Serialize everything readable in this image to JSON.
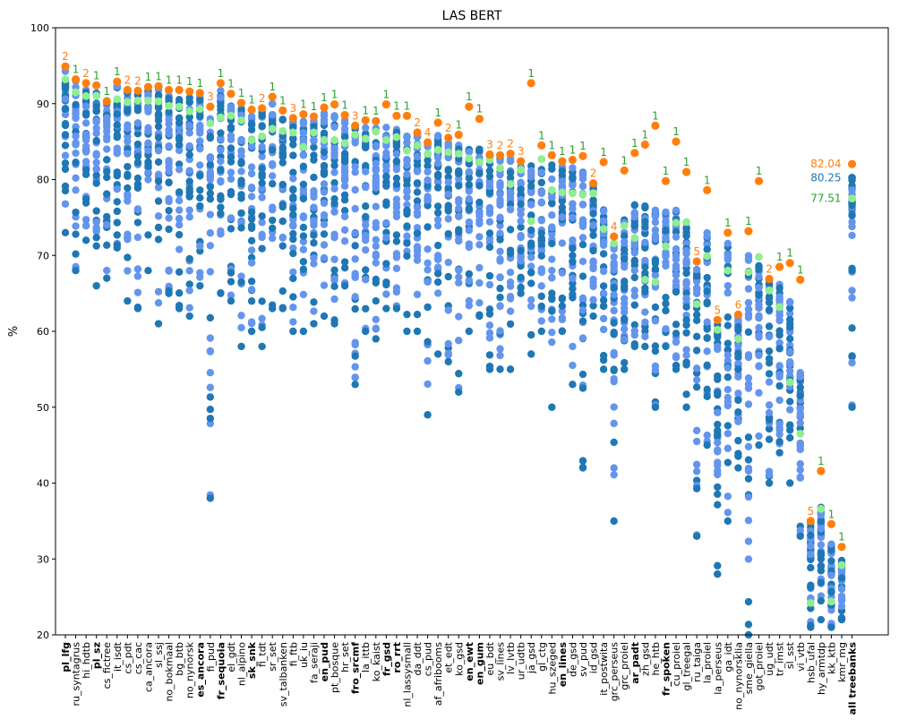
{
  "chart_data": {
    "type": "scatter",
    "title": "LAS BERT",
    "ylabel": "%",
    "xlabel": "",
    "ylim": [
      20,
      100
    ],
    "yticks": [
      20,
      30,
      40,
      50,
      60,
      70,
      80,
      90,
      100
    ],
    "grid": false,
    "colors": {
      "dist_light": "#6495ed",
      "dist_dark": "#1f77b4",
      "highlight": "#ff7f0e",
      "mean": "#90ee90",
      "rank_label": "#2ca02c",
      "orange_label": "#ff7f0e",
      "all_blue_label": "#1f77b4"
    },
    "categories": [
      "pl_lfg",
      "ru_syntagrus",
      "hi_hdtb",
      "pl_sz",
      "cs_fictree",
      "it_isdt",
      "cs_pdt",
      "cs_cac",
      "ca_ancora",
      "sl_ssj",
      "no_bokmaal",
      "bg_btb",
      "no_nynorsk",
      "es_ancora",
      "fi_pud",
      "fr_sequoia",
      "el_gdt",
      "nl_alpino",
      "sk_snk",
      "fi_tdt",
      "sr_set",
      "sv_talbanken",
      "fi_ftb",
      "uk_iu",
      "fa_seraji",
      "en_pud",
      "pt_bosque",
      "hr_set",
      "fro_srcmf",
      "la_ittb",
      "ko_kaist",
      "fr_gsd",
      "ro_rrt",
      "nl_lassysmall",
      "da_ddt",
      "cs_pud",
      "af_afribooms",
      "et_edt",
      "ko_gsd",
      "en_ewt",
      "en_gum",
      "eu_bdt",
      "sv_lines",
      "lv_lvtb",
      "ur_udtb",
      "ja_gsd",
      "gl_ctg",
      "hu_szeged",
      "en_lines",
      "de_gsd",
      "sv_pud",
      "id_gsd",
      "it_postwita",
      "grc_perseus",
      "grc_proiel",
      "ar_padt",
      "zh_gsd",
      "he_htb",
      "fr_spoken",
      "cu_proiel",
      "gl_treegal",
      "ru_taiga",
      "la_proiel",
      "la_perseus",
      "ga_idt",
      "no_nynorsklia",
      "sme_giella",
      "got_proiel",
      "ug_udt",
      "tr_imst",
      "sl_sst",
      "vi_vtb",
      "hsb_ufal",
      "hy_armtdp",
      "kk_ktb",
      "kmr_mg",
      "all treebanks"
    ],
    "highlighted_categories": [
      "pl_lfg",
      "pl_sz",
      "es_ancora",
      "fr_sequoia",
      "sk_snk",
      "en_pud",
      "fro_srcmf",
      "fr_gsd",
      "ro_rrt",
      "en_gum",
      "en_ewt",
      "en_lines",
      "ar_padt",
      "fr_spoken"
    ],
    "best_values": [
      94.9,
      93.2,
      92.7,
      92.4,
      90.3,
      92.9,
      91.8,
      91.7,
      92.2,
      92.3,
      91.8,
      91.8,
      91.6,
      91.4,
      89.6,
      92.7,
      91.3,
      90.1,
      89.2,
      89.4,
      90.9,
      89.1,
      88.1,
      88.6,
      88.3,
      89.5,
      89.9,
      88.5,
      87.1,
      87.8,
      87.7,
      89.9,
      88.4,
      88.4,
      86.2,
      84.9,
      87.5,
      85.5,
      85.9,
      89.6,
      88.0,
      83.3,
      83.2,
      83.4,
      82.4,
      92.7,
      84.5,
      83.2,
      82.4,
      82.6,
      83.1,
      79.5,
      82.3,
      72.5,
      81.2,
      83.5,
      84.6,
      87.1,
      79.8,
      85.0,
      81.0,
      69.2,
      78.6,
      61.5,
      73.0,
      62.2,
      73.2,
      79.8,
      66.9,
      68.5,
      69.0,
      66.8,
      35.0,
      41.6,
      34.6,
      31.6,
      82.04
    ],
    "best_labels": [
      "2",
      "1",
      "2",
      "1",
      "1",
      "1",
      "2",
      "2",
      "1",
      "1",
      "1",
      "1",
      "1",
      "1",
      "3",
      "1",
      "1",
      "1",
      "1",
      "2",
      "1",
      "1",
      "3",
      "1",
      "1",
      "1",
      "1",
      "1",
      "3",
      "1",
      "1",
      "1",
      "1",
      "1",
      "2",
      "4",
      "1",
      "2",
      "1",
      "1",
      "1",
      "3",
      "2",
      "2",
      "3",
      "1",
      "1",
      "1",
      "1",
      "1",
      "1",
      "2",
      "1",
      "4",
      "1",
      "1",
      "1",
      "1",
      "1",
      "1",
      "1",
      "5",
      "1",
      "5",
      "1",
      "6",
      "1",
      "1",
      "2",
      "1",
      "1",
      "1",
      "5",
      "1",
      "1",
      "1",
      "82.04"
    ],
    "means": [
      93.2,
      91.5,
      91.0,
      91.0,
      90.4,
      90.6,
      90.2,
      90.4,
      90.4,
      90.3,
      89.7,
      89.6,
      89.0,
      89.3,
      87.4,
      88.2,
      88.4,
      87.8,
      85.2,
      85.7,
      86.7,
      86.4,
      86.2,
      84.3,
      86.2,
      85.2,
      85.2,
      84.8,
      85.9,
      85.4,
      86.3,
      85.2,
      85.6,
      83.8,
      84.5,
      83.4,
      83.9,
      83.6,
      83.4,
      82.8,
      82.3,
      82.6,
      81.5,
      79.4,
      81.3,
      74.5,
      82.7,
      78.6,
      78.3,
      78.2,
      78.0,
      78.2,
      73.5,
      71.6,
      73.9,
      72.3,
      66.8,
      66.5,
      71.2,
      74.3,
      74.4,
      63.6,
      69.9,
      60.2,
      68.0,
      59.0,
      67.8,
      69.8,
      65.4,
      63.2,
      53.3,
      46.5,
      24.2,
      36.6,
      24.4,
      29.2,
      77.51
    ],
    "ranges": [
      [
        73,
        95
      ],
      [
        68,
        93
      ],
      [
        72,
        92
      ],
      [
        66,
        92
      ],
      [
        67,
        92
      ],
      [
        71,
        93
      ],
      [
        64,
        92
      ],
      [
        63,
        92
      ],
      [
        68,
        92
      ],
      [
        61,
        92
      ],
      [
        65,
        92
      ],
      [
        63,
        91
      ],
      [
        62,
        91
      ],
      [
        66,
        91
      ],
      [
        38,
        90
      ],
      [
        65,
        92
      ],
      [
        64,
        90
      ],
      [
        58,
        90
      ],
      [
        60,
        89
      ],
      [
        58,
        89
      ],
      [
        63,
        90
      ],
      [
        63,
        88
      ],
      [
        60,
        88
      ],
      [
        60,
        88
      ],
      [
        61,
        88
      ],
      [
        62,
        89
      ],
      [
        61,
        89
      ],
      [
        66,
        88
      ],
      [
        53,
        87
      ],
      [
        60,
        87
      ],
      [
        59,
        87
      ],
      [
        63,
        87
      ],
      [
        63,
        87
      ],
      [
        60,
        86
      ],
      [
        60,
        86
      ],
      [
        49,
        85
      ],
      [
        57,
        86
      ],
      [
        56,
        85
      ],
      [
        52,
        85
      ],
      [
        60,
        84
      ],
      [
        62,
        84
      ],
      [
        55,
        84
      ],
      [
        55,
        83
      ],
      [
        55,
        83
      ],
      [
        65,
        82
      ],
      [
        57,
        82
      ],
      [
        60,
        82
      ],
      [
        50,
        82
      ],
      [
        60,
        82
      ],
      [
        53,
        82
      ],
      [
        42,
        81
      ],
      [
        62,
        80
      ],
      [
        55,
        76
      ],
      [
        35,
        74
      ],
      [
        55,
        75
      ],
      [
        58,
        77
      ],
      [
        58,
        77
      ],
      [
        50,
        76
      ],
      [
        58,
        76
      ],
      [
        55,
        76
      ],
      [
        50,
        74
      ],
      [
        33,
        74
      ],
      [
        45,
        73
      ],
      [
        28,
        72
      ],
      [
        35,
        72
      ],
      [
        42,
        70
      ],
      [
        20,
        70
      ],
      [
        45,
        69
      ],
      [
        40,
        68
      ],
      [
        44,
        67
      ],
      [
        40,
        64
      ],
      [
        33,
        55
      ],
      [
        21,
        45
      ],
      [
        22,
        37
      ],
      [
        21,
        32
      ],
      [
        22,
        30
      ],
      [
        50,
        82
      ]
    ],
    "all_treebanks_annotations": [
      "82.04",
      "80.25",
      "77.51"
    ]
  }
}
